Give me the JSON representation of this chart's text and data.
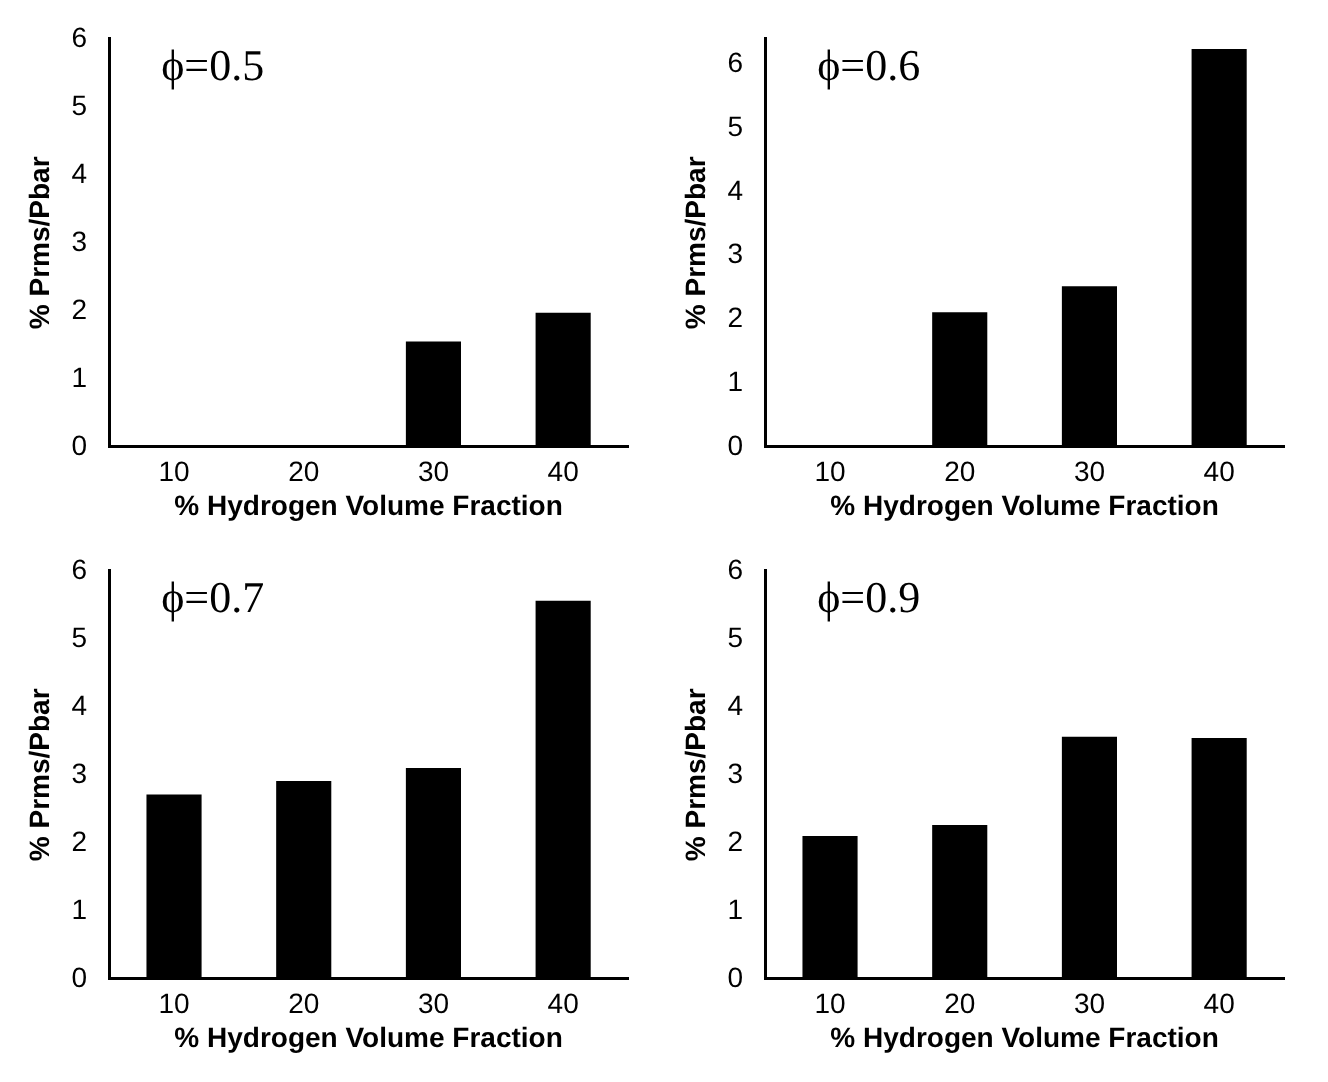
{
  "chart_data": [
    {
      "type": "bar",
      "annotations": [
        "ϕ=0.5"
      ],
      "xlabel": "% Hydrogen Volume Fraction",
      "ylabel": "% Prms/Pbar",
      "categories": [
        "10",
        "20",
        "30",
        "40"
      ],
      "values": [
        null,
        null,
        1.55,
        1.97
      ],
      "color": "#000000",
      "ylim": [
        0,
        6
      ],
      "yticks": [
        0,
        1,
        2,
        3,
        4,
        5,
        6
      ],
      "grid": false,
      "legend": false
    },
    {
      "type": "bar",
      "annotations": [
        "ϕ=0.6"
      ],
      "xlabel": "% Hydrogen Volume Fraction",
      "ylabel": "% Prms/Pbar",
      "categories": [
        "10",
        "20",
        "30",
        "40"
      ],
      "values": [
        null,
        2.11,
        2.52,
        6.24
      ],
      "color": "#000000",
      "ylim": [
        0,
        6.4
      ],
      "yticks": [
        0,
        1,
        2,
        3,
        4,
        5,
        6
      ],
      "grid": false,
      "legend": false
    },
    {
      "type": "bar",
      "annotations": [
        "ϕ=0.7"
      ],
      "xlabel": "% Hydrogen Volume Fraction",
      "ylabel": "% Prms/Pbar",
      "categories": [
        "10",
        "20",
        "30",
        "40"
      ],
      "values": [
        2.71,
        2.91,
        3.1,
        5.56
      ],
      "color": "#000000",
      "ylim": [
        0,
        6
      ],
      "yticks": [
        0,
        1,
        2,
        3,
        4,
        5,
        6
      ],
      "grid": false,
      "legend": false
    },
    {
      "type": "bar",
      "annotations": [
        "ϕ=0.9"
      ],
      "xlabel": "% Hydrogen Volume Fraction",
      "ylabel": "% Prms/Pbar",
      "categories": [
        "10",
        "20",
        "30",
        "40"
      ],
      "values": [
        2.1,
        2.26,
        3.56,
        3.54
      ],
      "color": "#000000",
      "ylim": [
        0,
        6
      ],
      "yticks": [
        0,
        1,
        2,
        3,
        4,
        5,
        6
      ],
      "grid": false,
      "legend": false
    }
  ]
}
